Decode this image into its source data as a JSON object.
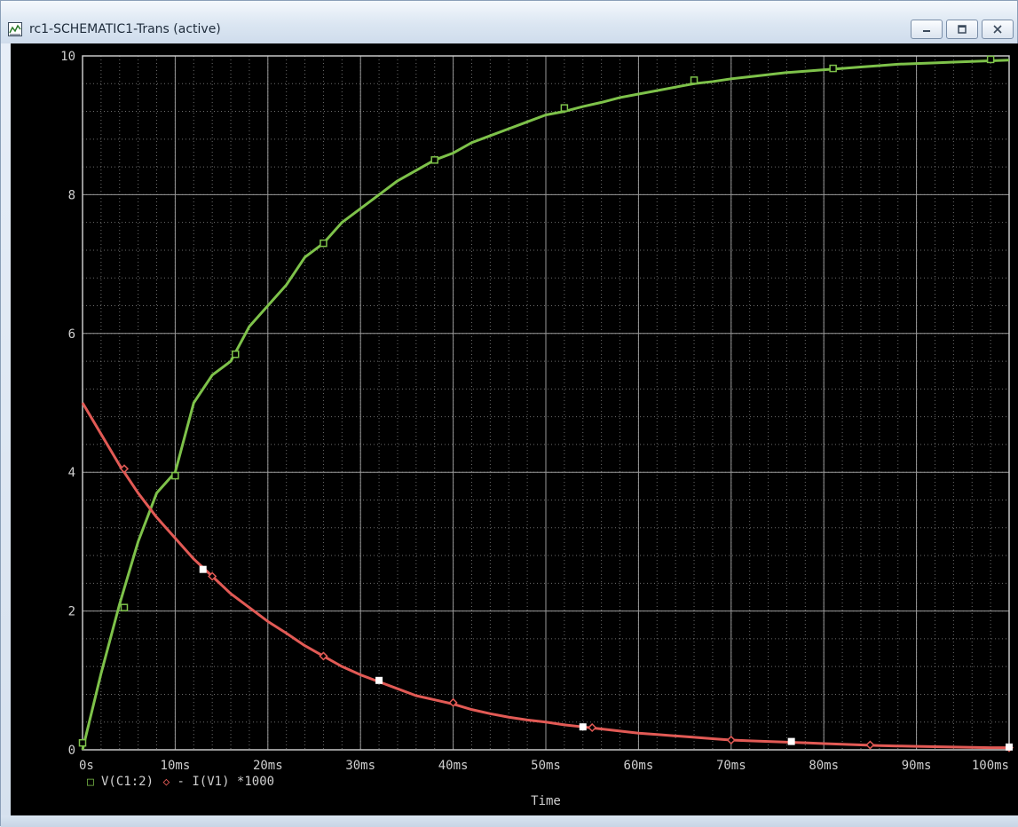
{
  "window": {
    "title": "rc1-SCHEMATIC1-Trans (active)",
    "icon": "schematic-app-icon",
    "buttons": {
      "minimize": "minimize-icon",
      "maximize": "maximize-icon",
      "close": "close-icon"
    }
  },
  "colors": {
    "background": "#000000",
    "grid": "#9a9a9a",
    "axis_text": "#cfcfcf",
    "voltage_trace": "#7ec24a",
    "current_trace": "#e25a55",
    "cursor_marker": "#ffffff"
  },
  "chart_data": {
    "type": "line",
    "xlabel": "Time",
    "x_tick_labels": [
      "0s",
      "10ms",
      "20ms",
      "30ms",
      "40ms",
      "50ms",
      "60ms",
      "70ms",
      "80ms",
      "90ms",
      "100ms"
    ],
    "y_tick_labels": [
      "0",
      "2",
      "4",
      "6",
      "8",
      "10"
    ],
    "xlim": [
      0,
      100
    ],
    "ylim": [
      0,
      10
    ],
    "grid": true,
    "legend": [
      {
        "symbol": "□",
        "label": "V(C1:2)"
      },
      {
        "symbol": "◇",
        "label": "- I(V1) *1000"
      }
    ],
    "series": [
      {
        "name": "V(C1:2)",
        "marker": "square",
        "x": [
          0,
          2,
          4,
          6,
          8,
          10,
          12,
          14,
          16,
          18,
          20,
          22,
          24,
          26,
          28,
          30,
          32,
          34,
          36,
          38,
          40,
          42,
          44,
          46,
          48,
          50,
          52,
          54,
          56,
          58,
          60,
          62,
          64,
          66,
          68,
          70,
          72,
          74,
          76,
          78,
          80,
          82,
          84,
          86,
          88,
          90,
          92,
          94,
          96,
          98,
          100
        ],
        "values": [
          0.0,
          1.1,
          2.1,
          3.0,
          3.7,
          4.0,
          5.0,
          5.4,
          5.6,
          6.1,
          6.4,
          6.7,
          7.1,
          7.3,
          7.6,
          7.8,
          8.0,
          8.2,
          8.35,
          8.5,
          8.6,
          8.75,
          8.85,
          8.95,
          9.05,
          9.15,
          9.2,
          9.27,
          9.33,
          9.4,
          9.45,
          9.5,
          9.55,
          9.6,
          9.63,
          9.67,
          9.7,
          9.73,
          9.76,
          9.78,
          9.8,
          9.82,
          9.84,
          9.86,
          9.88,
          9.89,
          9.9,
          9.91,
          9.92,
          9.93,
          9.94
        ],
        "marker_x": [
          0,
          4.5,
          10,
          16.5,
          26,
          38,
          52,
          66,
          81,
          98
        ],
        "marker_values": [
          0.1,
          2.05,
          3.95,
          5.7,
          7.3,
          8.5,
          9.25,
          9.65,
          9.82,
          9.95
        ]
      },
      {
        "name": "- I(V1) *1000",
        "marker": "diamond",
        "x": [
          0,
          2,
          4,
          6,
          8,
          10,
          12,
          14,
          16,
          18,
          20,
          22,
          24,
          26,
          28,
          30,
          32,
          34,
          36,
          38,
          40,
          42,
          44,
          46,
          48,
          50,
          52,
          54,
          56,
          58,
          60,
          62,
          64,
          66,
          68,
          70,
          72,
          74,
          76,
          78,
          80,
          82,
          84,
          86,
          88,
          90,
          92,
          94,
          96,
          98,
          100
        ],
        "values": [
          5.0,
          4.55,
          4.1,
          3.7,
          3.35,
          3.05,
          2.75,
          2.5,
          2.25,
          2.05,
          1.85,
          1.68,
          1.5,
          1.35,
          1.2,
          1.08,
          0.98,
          0.88,
          0.78,
          0.72,
          0.66,
          0.58,
          0.52,
          0.47,
          0.43,
          0.4,
          0.36,
          0.33,
          0.3,
          0.27,
          0.24,
          0.22,
          0.2,
          0.18,
          0.16,
          0.14,
          0.13,
          0.12,
          0.11,
          0.1,
          0.09,
          0.08,
          0.07,
          0.06,
          0.055,
          0.05,
          0.045,
          0.04,
          0.035,
          0.03,
          0.03
        ],
        "marker_x": [
          4.5,
          14,
          26,
          40,
          55,
          70,
          85,
          100
        ],
        "marker_values": [
          4.05,
          2.5,
          1.35,
          0.68,
          0.32,
          0.14,
          0.07,
          0.03
        ]
      }
    ],
    "cursor_markers": {
      "x": [
        13,
        32,
        54,
        76.5,
        100
      ],
      "values": [
        2.6,
        1.0,
        0.33,
        0.12,
        0.04
      ]
    }
  }
}
